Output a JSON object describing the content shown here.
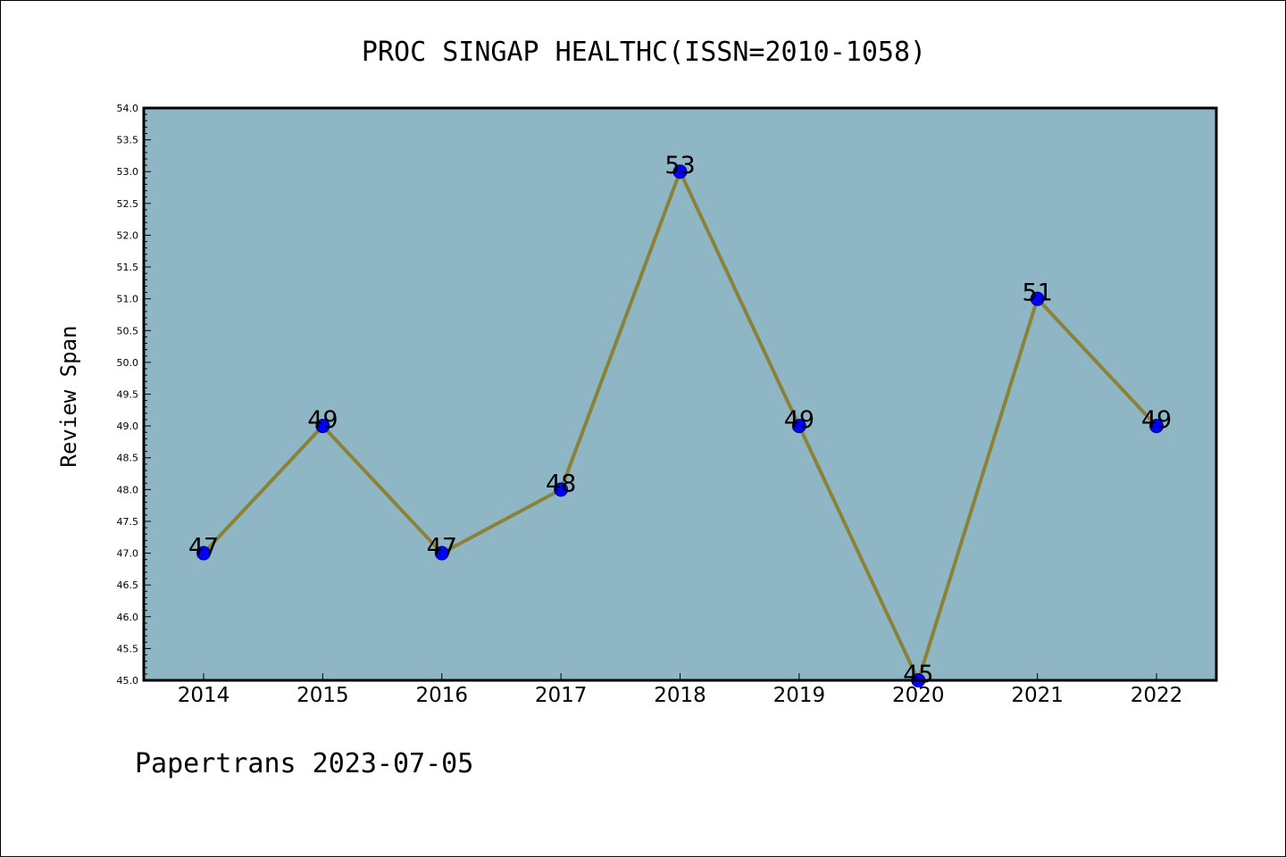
{
  "chart_data": {
    "type": "line",
    "title": "PROC SINGAP HEALTHC(ISSN=2010-1058)",
    "xlabel": "",
    "ylabel": "Review Span",
    "categories": [
      "2014",
      "2015",
      "2016",
      "2017",
      "2018",
      "2019",
      "2020",
      "2021",
      "2022"
    ],
    "series": [
      {
        "values": [
          47,
          49,
          47,
          48,
          53,
          49,
          45,
          51,
          49
        ]
      }
    ],
    "data_labels": [
      "47",
      "49",
      "47",
      "48",
      "53",
      "49",
      "45",
      "51",
      "49"
    ],
    "ylim": [
      45.0,
      54.0
    ],
    "y_ticks": [
      "45.0",
      "45.5",
      "46.0",
      "46.5",
      "47.0",
      "47.5",
      "48.0",
      "48.5",
      "49.0",
      "49.5",
      "50.0",
      "50.5",
      "51.0",
      "51.5",
      "52.0",
      "52.5",
      "53.0",
      "53.5",
      "54.0"
    ],
    "grid": false,
    "colors": {
      "plot_background": "#8fb6c4",
      "line": "#8b8238",
      "marker": "#0000ff",
      "marker_edge": "#000080"
    }
  },
  "footer": "Papertrans 2023-07-05"
}
